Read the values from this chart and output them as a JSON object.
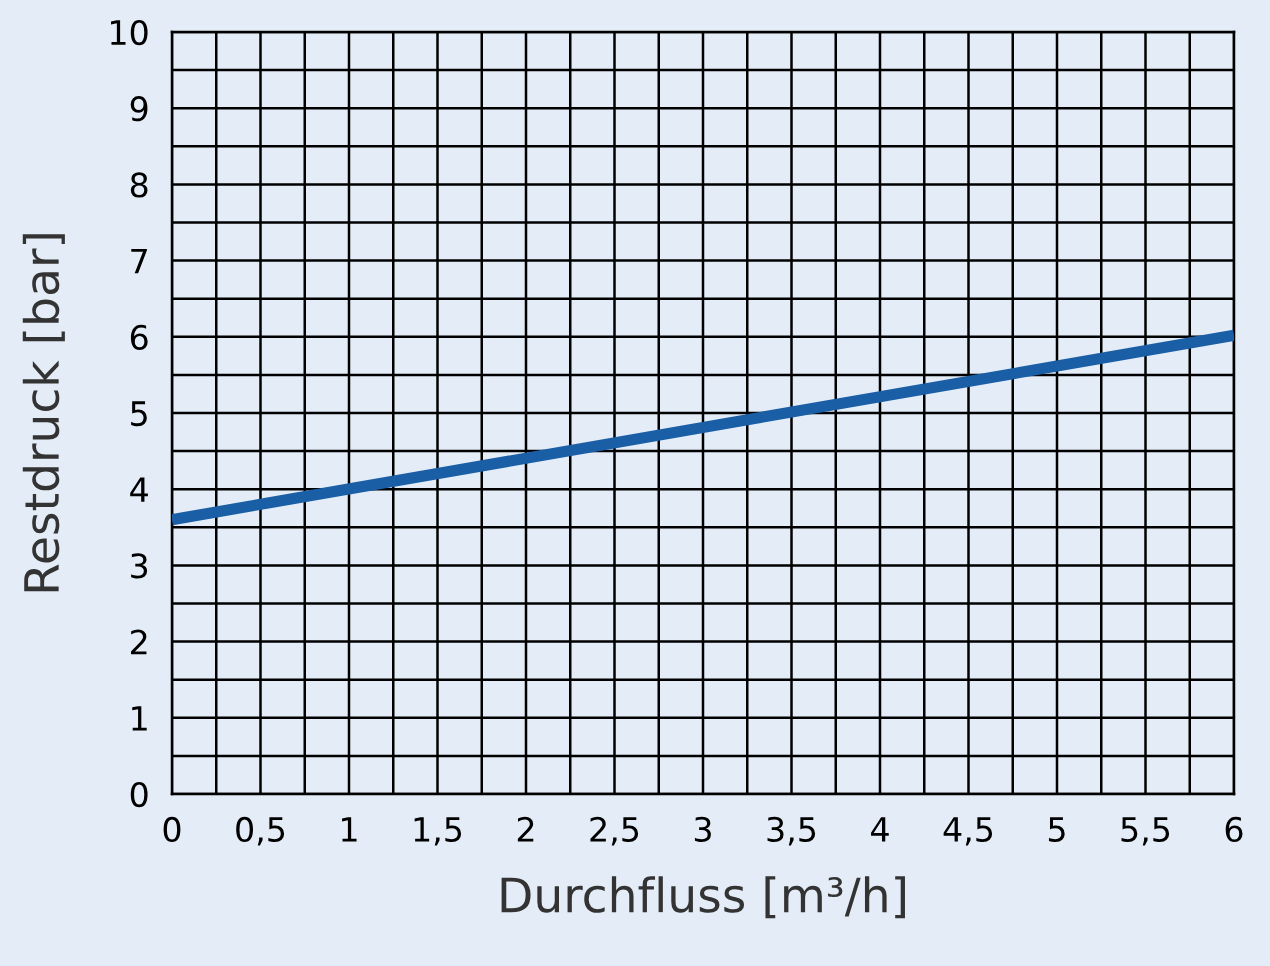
{
  "chart_data": {
    "type": "line",
    "xlabel": "Durchfluss [m³/h]",
    "ylabel": "Restdruck [bar]",
    "x": [
      0,
      6
    ],
    "series": [
      {
        "color": "#1a5ea6",
        "values": [
          3.6,
          6.02
        ]
      }
    ],
    "xlim": [
      0,
      6
    ],
    "ylim": [
      0,
      10
    ],
    "xticks": [
      0,
      {
        "value": 0.5,
        "label": "0,5"
      },
      1,
      {
        "value": 1.5,
        "label": "1,5"
      },
      2,
      {
        "value": 2.5,
        "label": "2,5"
      },
      3,
      {
        "value": 3.5,
        "label": "3,5"
      },
      4,
      {
        "value": 4.5,
        "label": "4,5"
      },
      5,
      {
        "value": 5.5,
        "label": "5,5"
      },
      6
    ],
    "yticks": [
      0,
      1,
      2,
      3,
      4,
      5,
      6,
      7,
      8,
      9,
      10
    ],
    "grid": true,
    "marker": "none",
    "line_style": "solid"
  }
}
